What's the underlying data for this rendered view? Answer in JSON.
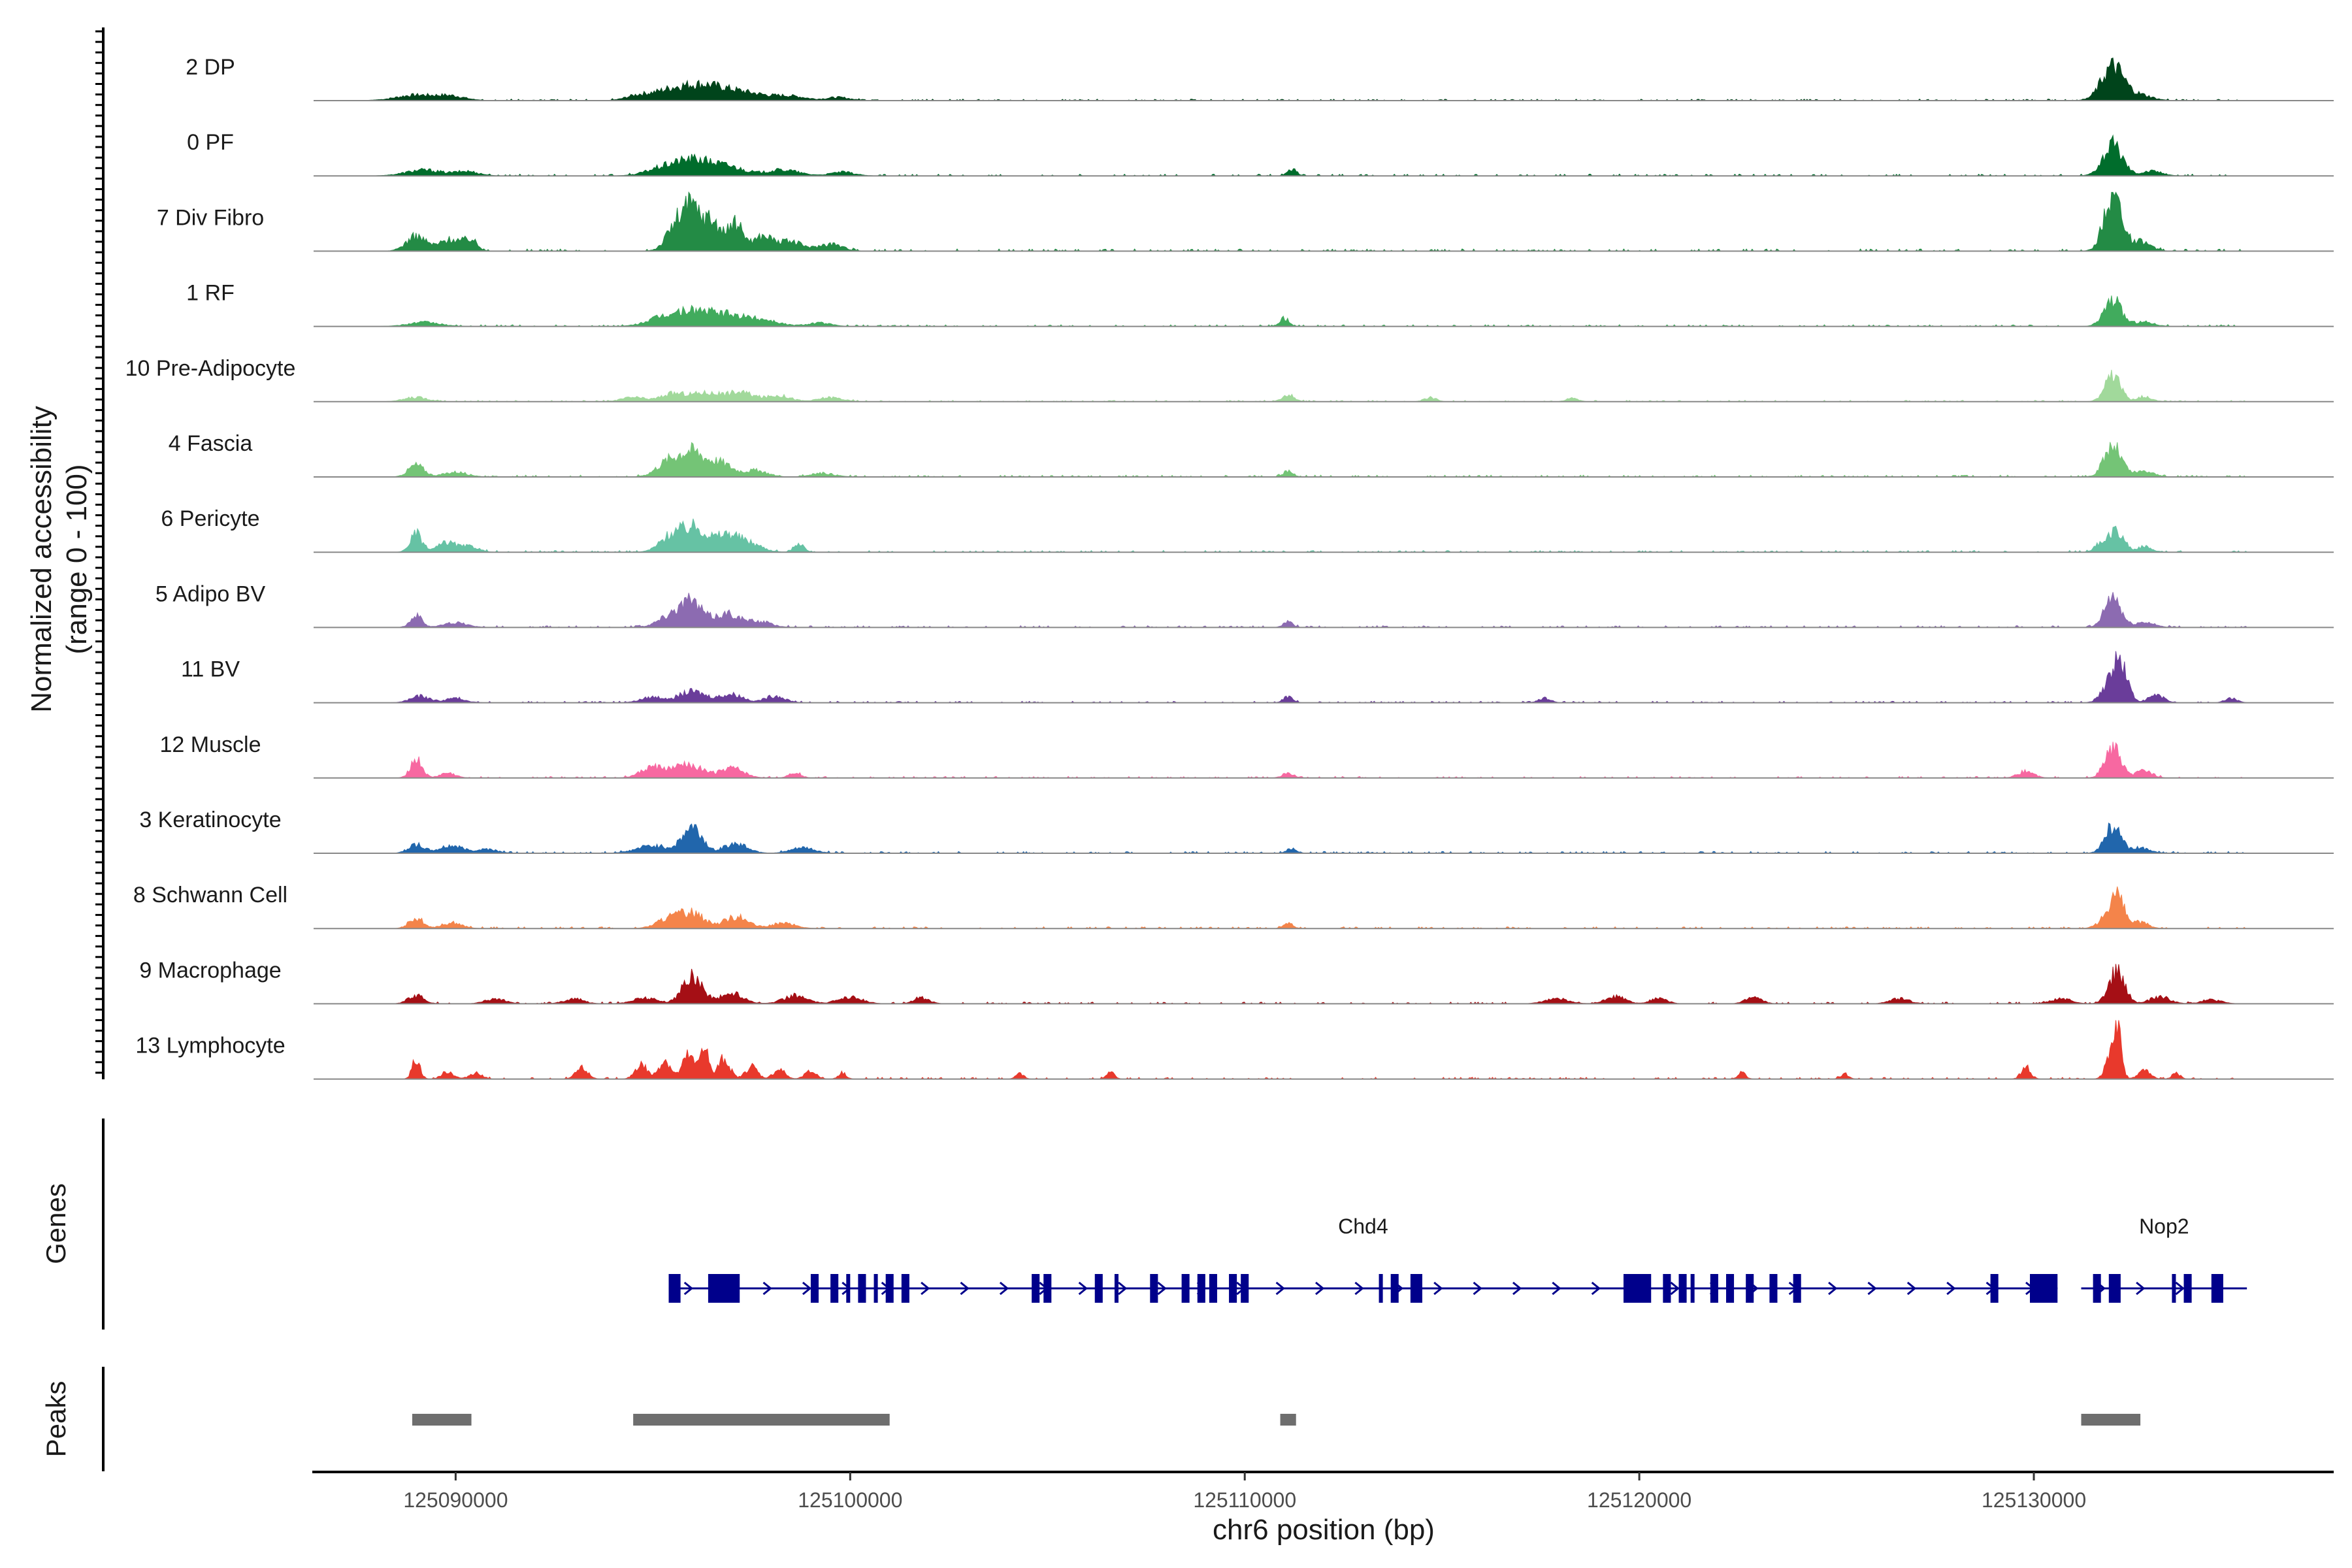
{
  "chart_data": {
    "type": "area",
    "title": "",
    "ylabel": "Normalized accessibility\n(range 0 - 100)",
    "ylabel_lines": [
      "Normalized accessibility",
      "(range 0 - 100)"
    ],
    "xlabel": "chr6 position (bp)",
    "chromosome": "chr6",
    "xlim": [
      125086400,
      125137600
    ],
    "ylim": [
      0,
      100
    ],
    "x_ticks": [
      125090000,
      125100000,
      125110000,
      125120000,
      125130000
    ],
    "x_tick_labels": [
      "125090000",
      "125100000",
      "125110000",
      "125120000",
      "125130000"
    ],
    "tracks": [
      {
        "name": "2 DP",
        "color": "#00441b",
        "scale": 0.85,
        "peaks": [
          [
            125089000,
            12,
            500
          ],
          [
            125089900,
            9,
            350
          ],
          [
            125094600,
            10,
            300
          ],
          [
            125095300,
            14,
            400
          ],
          [
            125096000,
            26,
            500
          ],
          [
            125096700,
            18,
            500
          ],
          [
            125097500,
            12,
            500
          ],
          [
            125098500,
            9,
            400
          ],
          [
            125099700,
            7,
            300
          ],
          [
            125132000,
            75,
            280
          ],
          [
            125132700,
            12,
            300
          ]
        ]
      },
      {
        "name": "0 PF",
        "color": "#006d2c",
        "scale": 1.0,
        "peaks": [
          [
            125089200,
            11,
            450
          ],
          [
            125090300,
            8,
            300
          ],
          [
            125095200,
            12,
            400
          ],
          [
            125096000,
            28,
            450
          ],
          [
            125096900,
            16,
            450
          ],
          [
            125098300,
            11,
            400
          ],
          [
            125099800,
            7,
            300
          ],
          [
            125111200,
            12,
            120
          ],
          [
            125132000,
            58,
            250
          ],
          [
            125133000,
            9,
            250
          ]
        ]
      },
      {
        "name": "7 Div Fibro",
        "color": "#238b45",
        "scale": 1.25,
        "peaks": [
          [
            125089000,
            22,
            250
          ],
          [
            125089900,
            18,
            300
          ],
          [
            125090400,
            14,
            150
          ],
          [
            125095600,
            38,
            250
          ],
          [
            125096000,
            56,
            220
          ],
          [
            125096500,
            44,
            220
          ],
          [
            125097100,
            40,
            200
          ],
          [
            125097800,
            22,
            250
          ],
          [
            125098500,
            14,
            300
          ],
          [
            125099500,
            11,
            300
          ],
          [
            125132000,
            88,
            220
          ],
          [
            125132700,
            14,
            250
          ]
        ]
      },
      {
        "name": "1 RF",
        "color": "#41ab5d",
        "scale": 0.95,
        "peaks": [
          [
            125089200,
            8,
            400
          ],
          [
            125095200,
            14,
            400
          ],
          [
            125096000,
            28,
            450
          ],
          [
            125096900,
            20,
            450
          ],
          [
            125097800,
            12,
            400
          ],
          [
            125099200,
            7,
            300
          ],
          [
            125111000,
            16,
            120
          ],
          [
            125132000,
            52,
            220
          ],
          [
            125132800,
            9,
            250
          ]
        ]
      },
      {
        "name": "10 Pre-Adipocyte",
        "color": "#a1d99b",
        "scale": 0.8,
        "peaks": [
          [
            125089000,
            10,
            300
          ],
          [
            125094500,
            10,
            300
          ],
          [
            125095500,
            18,
            300
          ],
          [
            125096300,
            20,
            350
          ],
          [
            125097200,
            22,
            350
          ],
          [
            125098200,
            14,
            300
          ],
          [
            125099500,
            10,
            300
          ],
          [
            125111100,
            18,
            150
          ],
          [
            125114700,
            10,
            150
          ],
          [
            125118300,
            8,
            150
          ],
          [
            125132000,
            58,
            200
          ],
          [
            125132800,
            12,
            200
          ]
        ]
      },
      {
        "name": "4 Fascia",
        "color": "#74c476",
        "scale": 1.0,
        "peaks": [
          [
            125089000,
            22,
            200
          ],
          [
            125090000,
            9,
            300
          ],
          [
            125095400,
            28,
            300
          ],
          [
            125096000,
            44,
            300
          ],
          [
            125096700,
            26,
            300
          ],
          [
            125097600,
            12,
            300
          ],
          [
            125099300,
            7,
            300
          ],
          [
            125111100,
            12,
            120
          ],
          [
            125132000,
            56,
            220
          ],
          [
            125132800,
            10,
            250
          ]
        ]
      },
      {
        "name": "6 Pericyte",
        "color": "#66c2a4",
        "scale": 1.0,
        "peaks": [
          [
            125089000,
            34,
            150
          ],
          [
            125089800,
            18,
            250
          ],
          [
            125090400,
            10,
            200
          ],
          [
            125095500,
            32,
            300
          ],
          [
            125096100,
            42,
            300
          ],
          [
            125096900,
            32,
            300
          ],
          [
            125097500,
            14,
            300
          ],
          [
            125098700,
            18,
            120
          ],
          [
            125131700,
            16,
            150
          ],
          [
            125132100,
            42,
            180
          ],
          [
            125132800,
            10,
            200
          ]
        ]
      },
      {
        "name": "5 Adipo BV",
        "color": "#8c6bb1",
        "scale": 1.0,
        "peaks": [
          [
            125089000,
            22,
            150
          ],
          [
            125090000,
            9,
            300
          ],
          [
            125095500,
            22,
            350
          ],
          [
            125096000,
            40,
            300
          ],
          [
            125096900,
            26,
            300
          ],
          [
            125097700,
            11,
            300
          ],
          [
            125111100,
            11,
            120
          ],
          [
            125132000,
            60,
            200
          ],
          [
            125132800,
            10,
            250
          ]
        ]
      },
      {
        "name": "11 BV",
        "color": "#6a3d9a",
        "scale": 0.85,
        "peaks": [
          [
            125089100,
            14,
            250
          ],
          [
            125090000,
            10,
            250
          ],
          [
            125095000,
            12,
            300
          ],
          [
            125096000,
            24,
            350
          ],
          [
            125097000,
            18,
            300
          ],
          [
            125098100,
            15,
            250
          ],
          [
            125111100,
            14,
            120
          ],
          [
            125117600,
            10,
            150
          ],
          [
            125131900,
            36,
            200
          ],
          [
            125132200,
            78,
            180
          ],
          [
            125133100,
            16,
            200
          ],
          [
            125135000,
            10,
            150
          ]
        ]
      },
      {
        "name": "12 Muscle",
        "color": "#f768a1",
        "scale": 0.9,
        "peaks": [
          [
            125089000,
            38,
            150
          ],
          [
            125089800,
            10,
            200
          ],
          [
            125095000,
            22,
            300
          ],
          [
            125095900,
            28,
            350
          ],
          [
            125097000,
            20,
            300
          ],
          [
            125098600,
            12,
            150
          ],
          [
            125111100,
            10,
            150
          ],
          [
            125129800,
            14,
            200
          ],
          [
            125132000,
            62,
            200
          ],
          [
            125132800,
            16,
            200
          ]
        ]
      },
      {
        "name": "3 Keratinocyte",
        "color": "#2166ac",
        "scale": 1.0,
        "peaks": [
          [
            125089000,
            16,
            200
          ],
          [
            125089900,
            14,
            300
          ],
          [
            125090800,
            8,
            250
          ],
          [
            125095000,
            14,
            400
          ],
          [
            125096000,
            48,
            250
          ],
          [
            125097100,
            18,
            300
          ],
          [
            125098800,
            10,
            300
          ],
          [
            125111200,
            10,
            120
          ],
          [
            125132000,
            50,
            200
          ],
          [
            125132700,
            10,
            250
          ]
        ]
      },
      {
        "name": "8 Schwann Cell",
        "color": "#f4844a",
        "scale": 1.0,
        "peaks": [
          [
            125089000,
            20,
            180
          ],
          [
            125089900,
            11,
            250
          ],
          [
            125095400,
            18,
            300
          ],
          [
            125096000,
            28,
            300
          ],
          [
            125097100,
            22,
            300
          ],
          [
            125098300,
            10,
            300
          ],
          [
            125111100,
            10,
            120
          ],
          [
            125131800,
            14,
            200
          ],
          [
            125132100,
            60,
            180
          ],
          [
            125132700,
            12,
            200
          ]
        ]
      },
      {
        "name": "9 Macrophage",
        "color": "#a50f15",
        "scale": 0.95,
        "peaks": [
          [
            125089000,
            16,
            200
          ],
          [
            125091000,
            10,
            250
          ],
          [
            125093000,
            10,
            250
          ],
          [
            125094800,
            12,
            300
          ],
          [
            125096000,
            55,
            250
          ],
          [
            125097000,
            20,
            300
          ],
          [
            125098600,
            16,
            300
          ],
          [
            125100000,
            14,
            300
          ],
          [
            125101800,
            12,
            200
          ],
          [
            125117900,
            10,
            300
          ],
          [
            125119400,
            14,
            250
          ],
          [
            125120500,
            12,
            200
          ],
          [
            125122900,
            14,
            200
          ],
          [
            125126600,
            10,
            250
          ],
          [
            125130700,
            10,
            250
          ],
          [
            125132100,
            62,
            200
          ],
          [
            125133200,
            14,
            250
          ],
          [
            125134500,
            8,
            250
          ]
        ]
      },
      {
        "name": "13 Lymphocyte",
        "color": "#e8392c",
        "scale": 1.0,
        "peaks": [
          [
            125089000,
            38,
            100
          ],
          [
            125089800,
            14,
            150
          ],
          [
            125090500,
            12,
            150
          ],
          [
            125093200,
            20,
            150
          ],
          [
            125094700,
            28,
            150
          ],
          [
            125095300,
            36,
            150
          ],
          [
            125095900,
            44,
            150
          ],
          [
            125096300,
            68,
            100
          ],
          [
            125096800,
            38,
            150
          ],
          [
            125097500,
            24,
            150
          ],
          [
            125098200,
            18,
            150
          ],
          [
            125099000,
            14,
            150
          ],
          [
            125099800,
            12,
            100
          ],
          [
            125104300,
            10,
            100
          ],
          [
            125106600,
            12,
            100
          ],
          [
            125122600,
            12,
            100
          ],
          [
            125125200,
            10,
            100
          ],
          [
            125129800,
            22,
            120
          ],
          [
            125131900,
            30,
            120
          ],
          [
            125132100,
            100,
            110
          ],
          [
            125132800,
            16,
            150
          ],
          [
            125133600,
            12,
            100
          ]
        ]
      }
    ],
    "genes_panel_title": "Genes",
    "genes": [
      {
        "name": "Chd4",
        "start": 125095400,
        "end": 125130600,
        "strand": "+",
        "label_pos": 125113000,
        "exons": [
          [
            125095400,
            125095700
          ],
          [
            125096400,
            125097200
          ],
          [
            125099000,
            125099200
          ],
          [
            125099500,
            125099700
          ],
          [
            125099900,
            125100000
          ],
          [
            125100200,
            125100400
          ],
          [
            125100600,
            125100700
          ],
          [
            125100900,
            125101100
          ],
          [
            125101300,
            125101500
          ],
          [
            125104600,
            125104800
          ],
          [
            125104900,
            125105100
          ],
          [
            125106200,
            125106400
          ],
          [
            125106700,
            125106800
          ],
          [
            125107600,
            125107800
          ],
          [
            125108400,
            125108600
          ],
          [
            125108800,
            125109000
          ],
          [
            125109100,
            125109300
          ],
          [
            125109600,
            125109800
          ],
          [
            125109900,
            125110100
          ],
          [
            125113400,
            125113500
          ],
          [
            125113700,
            125113900
          ],
          [
            125114200,
            125114500
          ],
          [
            125119600,
            125120300
          ],
          [
            125120600,
            125120800
          ],
          [
            125121000,
            125121200
          ],
          [
            125121300,
            125121400
          ],
          [
            125121800,
            125122000
          ],
          [
            125122200,
            125122400
          ],
          [
            125122700,
            125122900
          ],
          [
            125123300,
            125123500
          ],
          [
            125123900,
            125124100
          ],
          [
            125128900,
            125129100
          ],
          [
            125129900,
            125130600
          ]
        ]
      },
      {
        "name": "Nop2",
        "start": 125131200,
        "end": 125135400,
        "strand": "+",
        "label_pos": 125133300,
        "exons": [
          [
            125131500,
            125131700
          ],
          [
            125131900,
            125132200
          ],
          [
            125133500,
            125133600
          ],
          [
            125133800,
            125134000
          ],
          [
            125134500,
            125134800
          ]
        ]
      }
    ],
    "peaks_panel_title": "Peaks",
    "peak_regions": [
      [
        125088900,
        125090400
      ],
      [
        125094500,
        125101000
      ],
      [
        125110900,
        125111300
      ],
      [
        125131200,
        125132700
      ]
    ]
  }
}
